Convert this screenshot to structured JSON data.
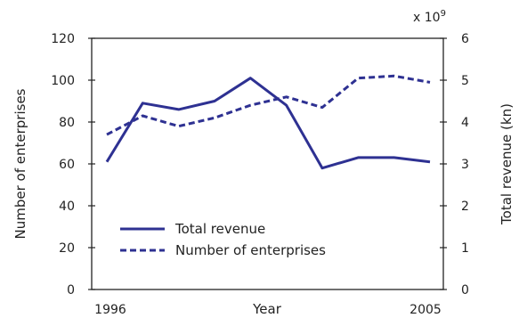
{
  "chart_data": {
    "type": "line",
    "x": [
      1996,
      1997,
      1998,
      1999,
      2000,
      2001,
      2002,
      2003,
      2004,
      2005
    ],
    "x_tick_labels": [
      "1996",
      "2005"
    ],
    "xlabel": "Year",
    "ylabel_left": "Number of enterprises",
    "ylabel_right": "Total revenue (kn)",
    "right_axis_multiplier": "x 10",
    "right_axis_multiplier_exp": "9",
    "ylim_left": [
      0,
      120
    ],
    "ylim_right": [
      0,
      6
    ],
    "yticks_left": [
      "0",
      "20",
      "40",
      "60",
      "80",
      "100",
      "120"
    ],
    "yticks_right": [
      "0",
      "1",
      "2",
      "3",
      "4",
      "5",
      "6"
    ],
    "series": [
      {
        "name": "Total revenue",
        "axis": "right",
        "style": "solid",
        "values": [
          3.05,
          4.45,
          4.3,
          4.5,
          5.05,
          4.4,
          2.9,
          3.15,
          3.15,
          3.05
        ]
      },
      {
        "name": "Number of enterprises",
        "axis": "left",
        "style": "dashed",
        "values": [
          74,
          83,
          78,
          82,
          88,
          92,
          87,
          101,
          102,
          99
        ]
      }
    ],
    "colors": {
      "series": "#2e3192"
    },
    "grid": false,
    "legend_position": "lower-left"
  }
}
